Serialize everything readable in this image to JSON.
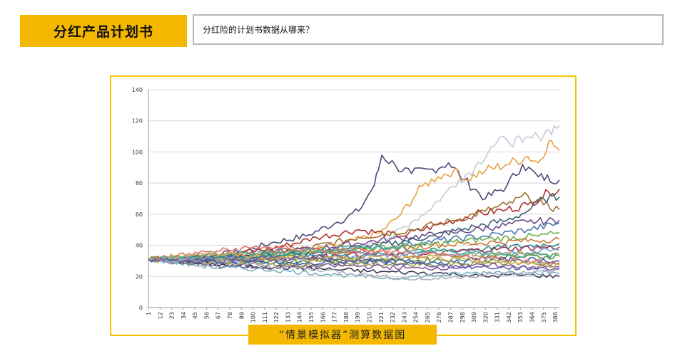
{
  "header": {
    "tab_label": "分红产品计划书",
    "question": "分红险的计划书数据从哪来？"
  },
  "caption": "“情景模拟器”测算数据图",
  "colors": {
    "accent": "#f5b800",
    "frame": "#f5c400",
    "question_border": "#b8b8b8"
  },
  "chart_data": {
    "type": "line",
    "title": "",
    "xlabel": "",
    "ylabel": "",
    "ylim": [
      0,
      140
    ],
    "yticks": [
      0,
      20,
      40,
      60,
      80,
      100,
      120,
      140
    ],
    "xticks": [
      "1",
      "12",
      "23",
      "34",
      "45",
      "56",
      "67",
      "78",
      "89",
      "100",
      "111",
      "122",
      "133",
      "144",
      "155",
      "166",
      "177",
      "188",
      "199",
      "210",
      "221",
      "232",
      "243",
      "254",
      "265",
      "276",
      "287",
      "298",
      "309",
      "320",
      "331",
      "342",
      "353",
      "364",
      "375",
      "386"
    ],
    "x_range": [
      1,
      390
    ],
    "grid": true,
    "legend": "none",
    "start_value": 31,
    "series": [
      {
        "color": "#4a4a7a",
        "points": [
          [
            1,
            31
          ],
          [
            40,
            32
          ],
          [
            90,
            36
          ],
          [
            120,
            42
          ],
          [
            150,
            46
          ],
          [
            180,
            55
          ],
          [
            200,
            62
          ],
          [
            215,
            79
          ],
          [
            222,
            98
          ],
          [
            235,
            91
          ],
          [
            250,
            86
          ],
          [
            270,
            89
          ],
          [
            285,
            93
          ],
          [
            300,
            82
          ],
          [
            320,
            70
          ],
          [
            340,
            78
          ],
          [
            355,
            92
          ],
          [
            370,
            84
          ],
          [
            390,
            82
          ]
        ]
      },
      {
        "color": "#e8a040",
        "points": [
          [
            1,
            31
          ],
          [
            60,
            32
          ],
          [
            120,
            33
          ],
          [
            180,
            40
          ],
          [
            220,
            48
          ],
          [
            240,
            60
          ],
          [
            260,
            78
          ],
          [
            275,
            84
          ],
          [
            290,
            88
          ],
          [
            300,
            82
          ],
          [
            320,
            88
          ],
          [
            340,
            92
          ],
          [
            360,
            97
          ],
          [
            370,
            93
          ],
          [
            380,
            107
          ],
          [
            390,
            101
          ]
        ]
      },
      {
        "color": "#c8c8d8",
        "points": [
          [
            1,
            31
          ],
          [
            80,
            30
          ],
          [
            140,
            31
          ],
          [
            190,
            36
          ],
          [
            230,
            45
          ],
          [
            250,
            55
          ],
          [
            265,
            62
          ],
          [
            280,
            72
          ],
          [
            295,
            82
          ],
          [
            310,
            90
          ],
          [
            325,
            103
          ],
          [
            340,
            108
          ],
          [
            355,
            106
          ],
          [
            370,
            110
          ],
          [
            380,
            114
          ],
          [
            390,
            117
          ]
        ]
      },
      {
        "color": "#b03030",
        "points": [
          [
            1,
            31
          ],
          [
            60,
            33
          ],
          [
            120,
            38
          ],
          [
            160,
            45
          ],
          [
            200,
            50
          ],
          [
            240,
            46
          ],
          [
            280,
            54
          ],
          [
            310,
            60
          ],
          [
            340,
            63
          ],
          [
            360,
            66
          ],
          [
            380,
            74
          ],
          [
            390,
            76
          ]
        ]
      },
      {
        "color": "#a07030",
        "points": [
          [
            1,
            31
          ],
          [
            80,
            33
          ],
          [
            150,
            38
          ],
          [
            200,
            45
          ],
          [
            250,
            50
          ],
          [
            290,
            56
          ],
          [
            320,
            62
          ],
          [
            340,
            66
          ],
          [
            360,
            72
          ],
          [
            375,
            66
          ],
          [
            390,
            63
          ]
        ]
      },
      {
        "color": "#3a6070",
        "points": [
          [
            1,
            31
          ],
          [
            80,
            32
          ],
          [
            160,
            36
          ],
          [
            220,
            40
          ],
          [
            270,
            46
          ],
          [
            310,
            52
          ],
          [
            340,
            56
          ],
          [
            360,
            62
          ],
          [
            375,
            70
          ],
          [
            390,
            71
          ]
        ]
      },
      {
        "color": "#6a4a8a",
        "points": [
          [
            1,
            31
          ],
          [
            90,
            34
          ],
          [
            160,
            38
          ],
          [
            230,
            44
          ],
          [
            290,
            48
          ],
          [
            330,
            52
          ],
          [
            360,
            55
          ],
          [
            390,
            56
          ]
        ]
      },
      {
        "color": "#4a7ab0",
        "points": [
          [
            1,
            31
          ],
          [
            70,
            30
          ],
          [
            140,
            33
          ],
          [
            200,
            36
          ],
          [
            260,
            42
          ],
          [
            320,
            46
          ],
          [
            360,
            50
          ],
          [
            390,
            54
          ]
        ]
      },
      {
        "color": "#6ab04a",
        "points": [
          [
            1,
            31
          ],
          [
            60,
            31
          ],
          [
            130,
            34
          ],
          [
            200,
            38
          ],
          [
            260,
            40
          ],
          [
            320,
            44
          ],
          [
            370,
            46
          ],
          [
            390,
            48
          ]
        ]
      },
      {
        "color": "#d07a30",
        "points": [
          [
            1,
            31
          ],
          [
            80,
            35
          ],
          [
            150,
            37
          ],
          [
            210,
            36
          ],
          [
            270,
            40
          ],
          [
            330,
            42
          ],
          [
            390,
            44
          ]
        ]
      },
      {
        "color": "#2a8a8a",
        "points": [
          [
            1,
            31
          ],
          [
            70,
            33
          ],
          [
            140,
            34
          ],
          [
            200,
            33
          ],
          [
            260,
            36
          ],
          [
            320,
            38
          ],
          [
            390,
            41
          ]
        ]
      },
      {
        "color": "#9a3a5a",
        "points": [
          [
            1,
            31
          ],
          [
            60,
            29
          ],
          [
            120,
            31
          ],
          [
            190,
            34
          ],
          [
            250,
            33
          ],
          [
            310,
            37
          ],
          [
            390,
            39
          ]
        ]
      },
      {
        "color": "#7aa0d0",
        "points": [
          [
            1,
            31
          ],
          [
            60,
            32
          ],
          [
            130,
            30
          ],
          [
            200,
            32
          ],
          [
            260,
            35
          ],
          [
            330,
            34
          ],
          [
            390,
            37
          ]
        ]
      },
      {
        "color": "#c0a030",
        "points": [
          [
            1,
            31
          ],
          [
            70,
            30
          ],
          [
            140,
            32
          ],
          [
            210,
            30
          ],
          [
            270,
            33
          ],
          [
            330,
            35
          ],
          [
            390,
            34
          ]
        ]
      },
      {
        "color": "#5a8a4a",
        "points": [
          [
            1,
            31
          ],
          [
            60,
            28
          ],
          [
            130,
            30
          ],
          [
            190,
            31
          ],
          [
            250,
            30
          ],
          [
            320,
            32
          ],
          [
            390,
            33
          ]
        ]
      },
      {
        "color": "#3060a0",
        "points": [
          [
            1,
            31
          ],
          [
            80,
            29
          ],
          [
            150,
            28
          ],
          [
            220,
            30
          ],
          [
            290,
            29
          ],
          [
            350,
            31
          ],
          [
            390,
            30
          ]
        ]
      },
      {
        "color": "#a0a040",
        "points": [
          [
            1,
            31
          ],
          [
            70,
            28
          ],
          [
            140,
            27
          ],
          [
            210,
            28
          ],
          [
            270,
            27
          ],
          [
            330,
            29
          ],
          [
            390,
            28
          ]
        ]
      },
      {
        "color": "#8a5a9a",
        "points": [
          [
            1,
            31
          ],
          [
            60,
            27
          ],
          [
            120,
            26
          ],
          [
            190,
            27
          ],
          [
            260,
            25
          ],
          [
            320,
            27
          ],
          [
            390,
            26
          ]
        ]
      },
      {
        "color": "#3a3a5a",
        "points": [
          [
            1,
            31
          ],
          [
            80,
            27
          ],
          [
            160,
            25
          ],
          [
            220,
            23
          ],
          [
            280,
            22
          ],
          [
            320,
            20
          ],
          [
            350,
            21
          ],
          [
            390,
            20
          ]
        ]
      },
      {
        "color": "#7ab0c0",
        "points": [
          [
            1,
            31
          ],
          [
            60,
            26
          ],
          [
            120,
            24
          ],
          [
            180,
            21
          ],
          [
            230,
            19
          ],
          [
            280,
            21
          ],
          [
            330,
            23
          ],
          [
            390,
            22
          ]
        ]
      },
      {
        "color": "#b0b0c0",
        "points": [
          [
            1,
            31
          ],
          [
            90,
            28
          ],
          [
            170,
            24
          ],
          [
            220,
            20
          ],
          [
            260,
            18
          ],
          [
            300,
            20
          ],
          [
            350,
            22
          ],
          [
            390,
            24
          ]
        ]
      },
      {
        "color": "#e07070",
        "points": [
          [
            1,
            31
          ],
          [
            60,
            36
          ],
          [
            110,
            39
          ],
          [
            170,
            37
          ],
          [
            230,
            35
          ],
          [
            290,
            33
          ],
          [
            350,
            31
          ],
          [
            390,
            29
          ]
        ]
      },
      {
        "color": "#4ab0a0",
        "points": [
          [
            1,
            31
          ],
          [
            70,
            34
          ],
          [
            140,
            36
          ],
          [
            200,
            39
          ],
          [
            260,
            37
          ],
          [
            320,
            35
          ],
          [
            390,
            33
          ]
        ]
      },
      {
        "color": "#d0b060",
        "points": [
          [
            1,
            31
          ],
          [
            50,
            35
          ],
          [
            100,
            33
          ],
          [
            160,
            31
          ],
          [
            220,
            33
          ],
          [
            280,
            31
          ],
          [
            340,
            29
          ],
          [
            390,
            27
          ]
        ]
      },
      {
        "color": "#6060b0",
        "points": [
          [
            1,
            31
          ],
          [
            60,
            30
          ],
          [
            120,
            32
          ],
          [
            190,
            30
          ],
          [
            250,
            28
          ],
          [
            310,
            26
          ],
          [
            390,
            25
          ]
        ]
      }
    ]
  }
}
